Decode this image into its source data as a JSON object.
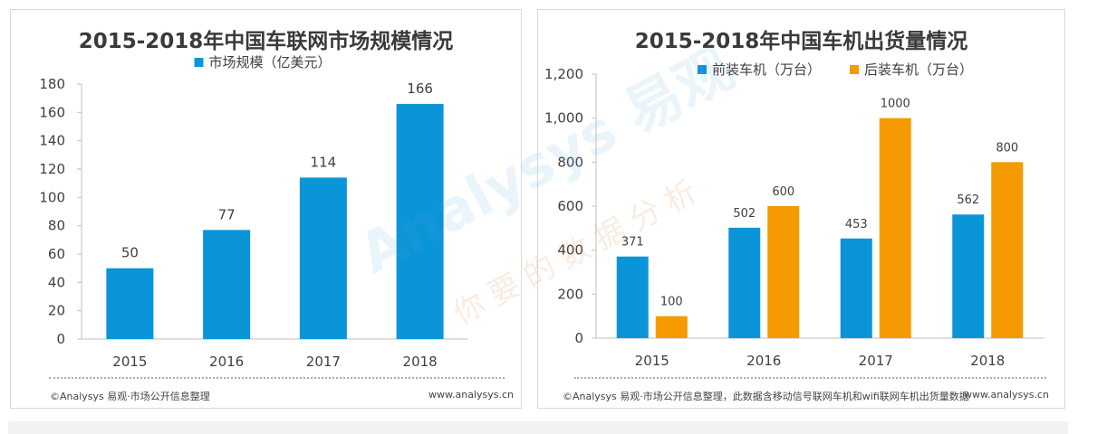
{
  "chart_data": [
    {
      "type": "bar",
      "title": "2015-2018年中国车联网市场规模情况",
      "categories": [
        "2015",
        "2016",
        "2017",
        "2018"
      ],
      "series": [
        {
          "name": "市场规模（亿美元）",
          "values": [
            50,
            77,
            114,
            166
          ],
          "color": "#0b95d9"
        }
      ],
      "ylim": [
        0,
        180
      ],
      "yticks": [
        "0",
        "20",
        "40",
        "60",
        "80",
        "100",
        "120",
        "140",
        "160",
        "180"
      ],
      "grid": false,
      "legend": "top",
      "source": "©Analysys 易观·市场公开信息整理",
      "site": "www.analysys.cn"
    },
    {
      "type": "bar",
      "title": "2015-2018年中国车机出货量情况",
      "categories": [
        "2015",
        "2016",
        "2017",
        "2018"
      ],
      "series": [
        {
          "name": "前装车机（万台）",
          "values": [
            371,
            502,
            453,
            562
          ],
          "color": "#0b95d9"
        },
        {
          "name": "后装车机（万台）",
          "values": [
            100,
            600,
            1000,
            800
          ],
          "color": "#f59a00"
        }
      ],
      "ylim": [
        0,
        1200
      ],
      "yticks": [
        "0",
        "200",
        "400",
        "600",
        "800",
        "1,000",
        "1,200"
      ],
      "grid": false,
      "legend": "top",
      "source": "©Analysys 易观·市场公开信息整理，此数据含移动信号联网车机和wifi联网车机出货量数据",
      "site": "www.analysys.cn"
    }
  ],
  "watermark": {
    "logo": "Analysys 易观",
    "slogan": "你要的数据分析"
  }
}
